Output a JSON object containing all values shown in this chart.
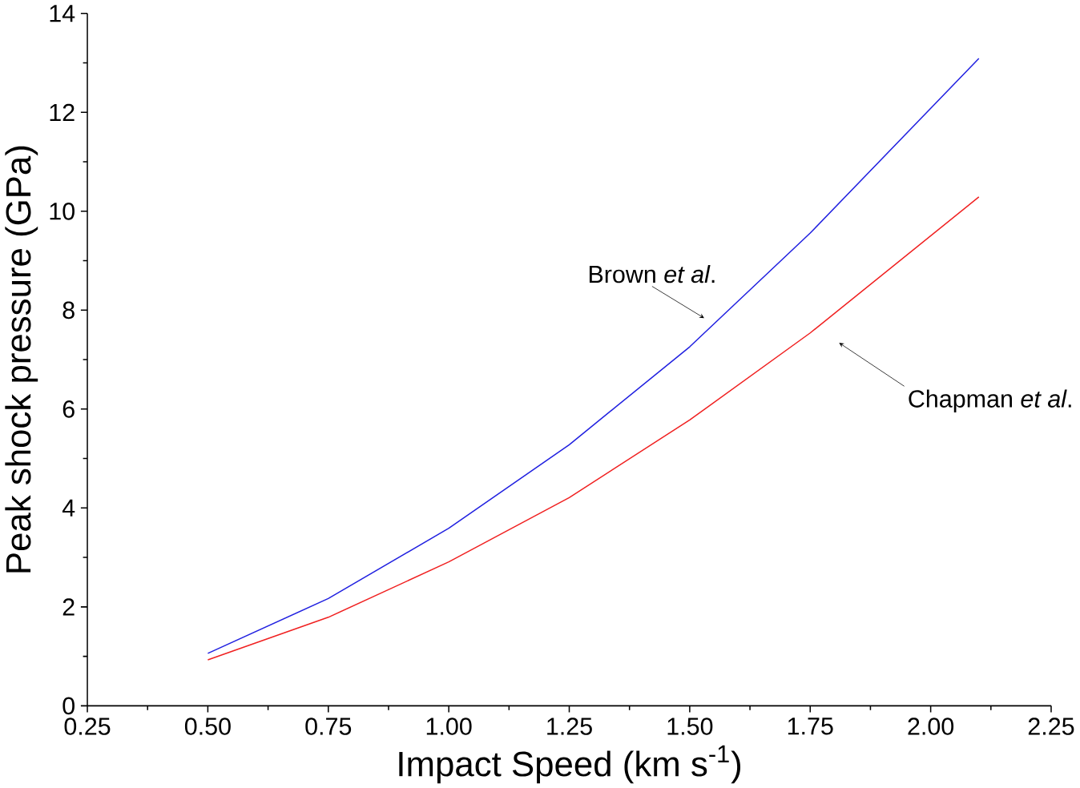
{
  "chart_data": {
    "type": "line",
    "xlabel": "Impact Speed (km s$^{-1}$)",
    "ylabel": "Peak shock pressure (GPa)",
    "x": [
      0.5,
      0.75,
      1.0,
      1.25,
      1.5,
      1.75,
      2.1
    ],
    "series": [
      {
        "color": "#2020e0",
        "values": [
          1.06,
          2.17,
          3.59,
          5.28,
          7.26,
          9.56,
          13.09
        ]
      },
      {
        "color": "#f02020",
        "values": [
          0.93,
          1.79,
          2.91,
          4.21,
          5.78,
          7.54,
          10.29
        ]
      }
    ],
    "annotations": [
      {
        "text": "Brown *et al*.",
        "x": 1.53,
        "y": 7.84
      },
      {
        "text": "Chapman *et al*.",
        "x": 1.81,
        "y": 7.34
      }
    ],
    "xlim": [
      0.25,
      2.25
    ],
    "ylim": [
      0,
      14
    ],
    "xticks": [
      {
        "value": 0.25,
        "label": "0.25"
      },
      {
        "value": 0.5,
        "label": "0.50"
      },
      {
        "value": 0.75,
        "label": "0.75"
      },
      {
        "value": 1.0,
        "label": "1.00"
      },
      {
        "value": 1.25,
        "label": "1.25"
      },
      {
        "value": 1.5,
        "label": "1.50"
      },
      {
        "value": 1.75,
        "label": "1.75"
      },
      {
        "value": 2.0,
        "label": "2.00"
      },
      {
        "value": 2.25,
        "label": "2.25"
      }
    ],
    "yticks": [
      0,
      2,
      4,
      6,
      8,
      10,
      12,
      14
    ],
    "grid": false,
    "marker": "none",
    "line_style": "solid"
  }
}
